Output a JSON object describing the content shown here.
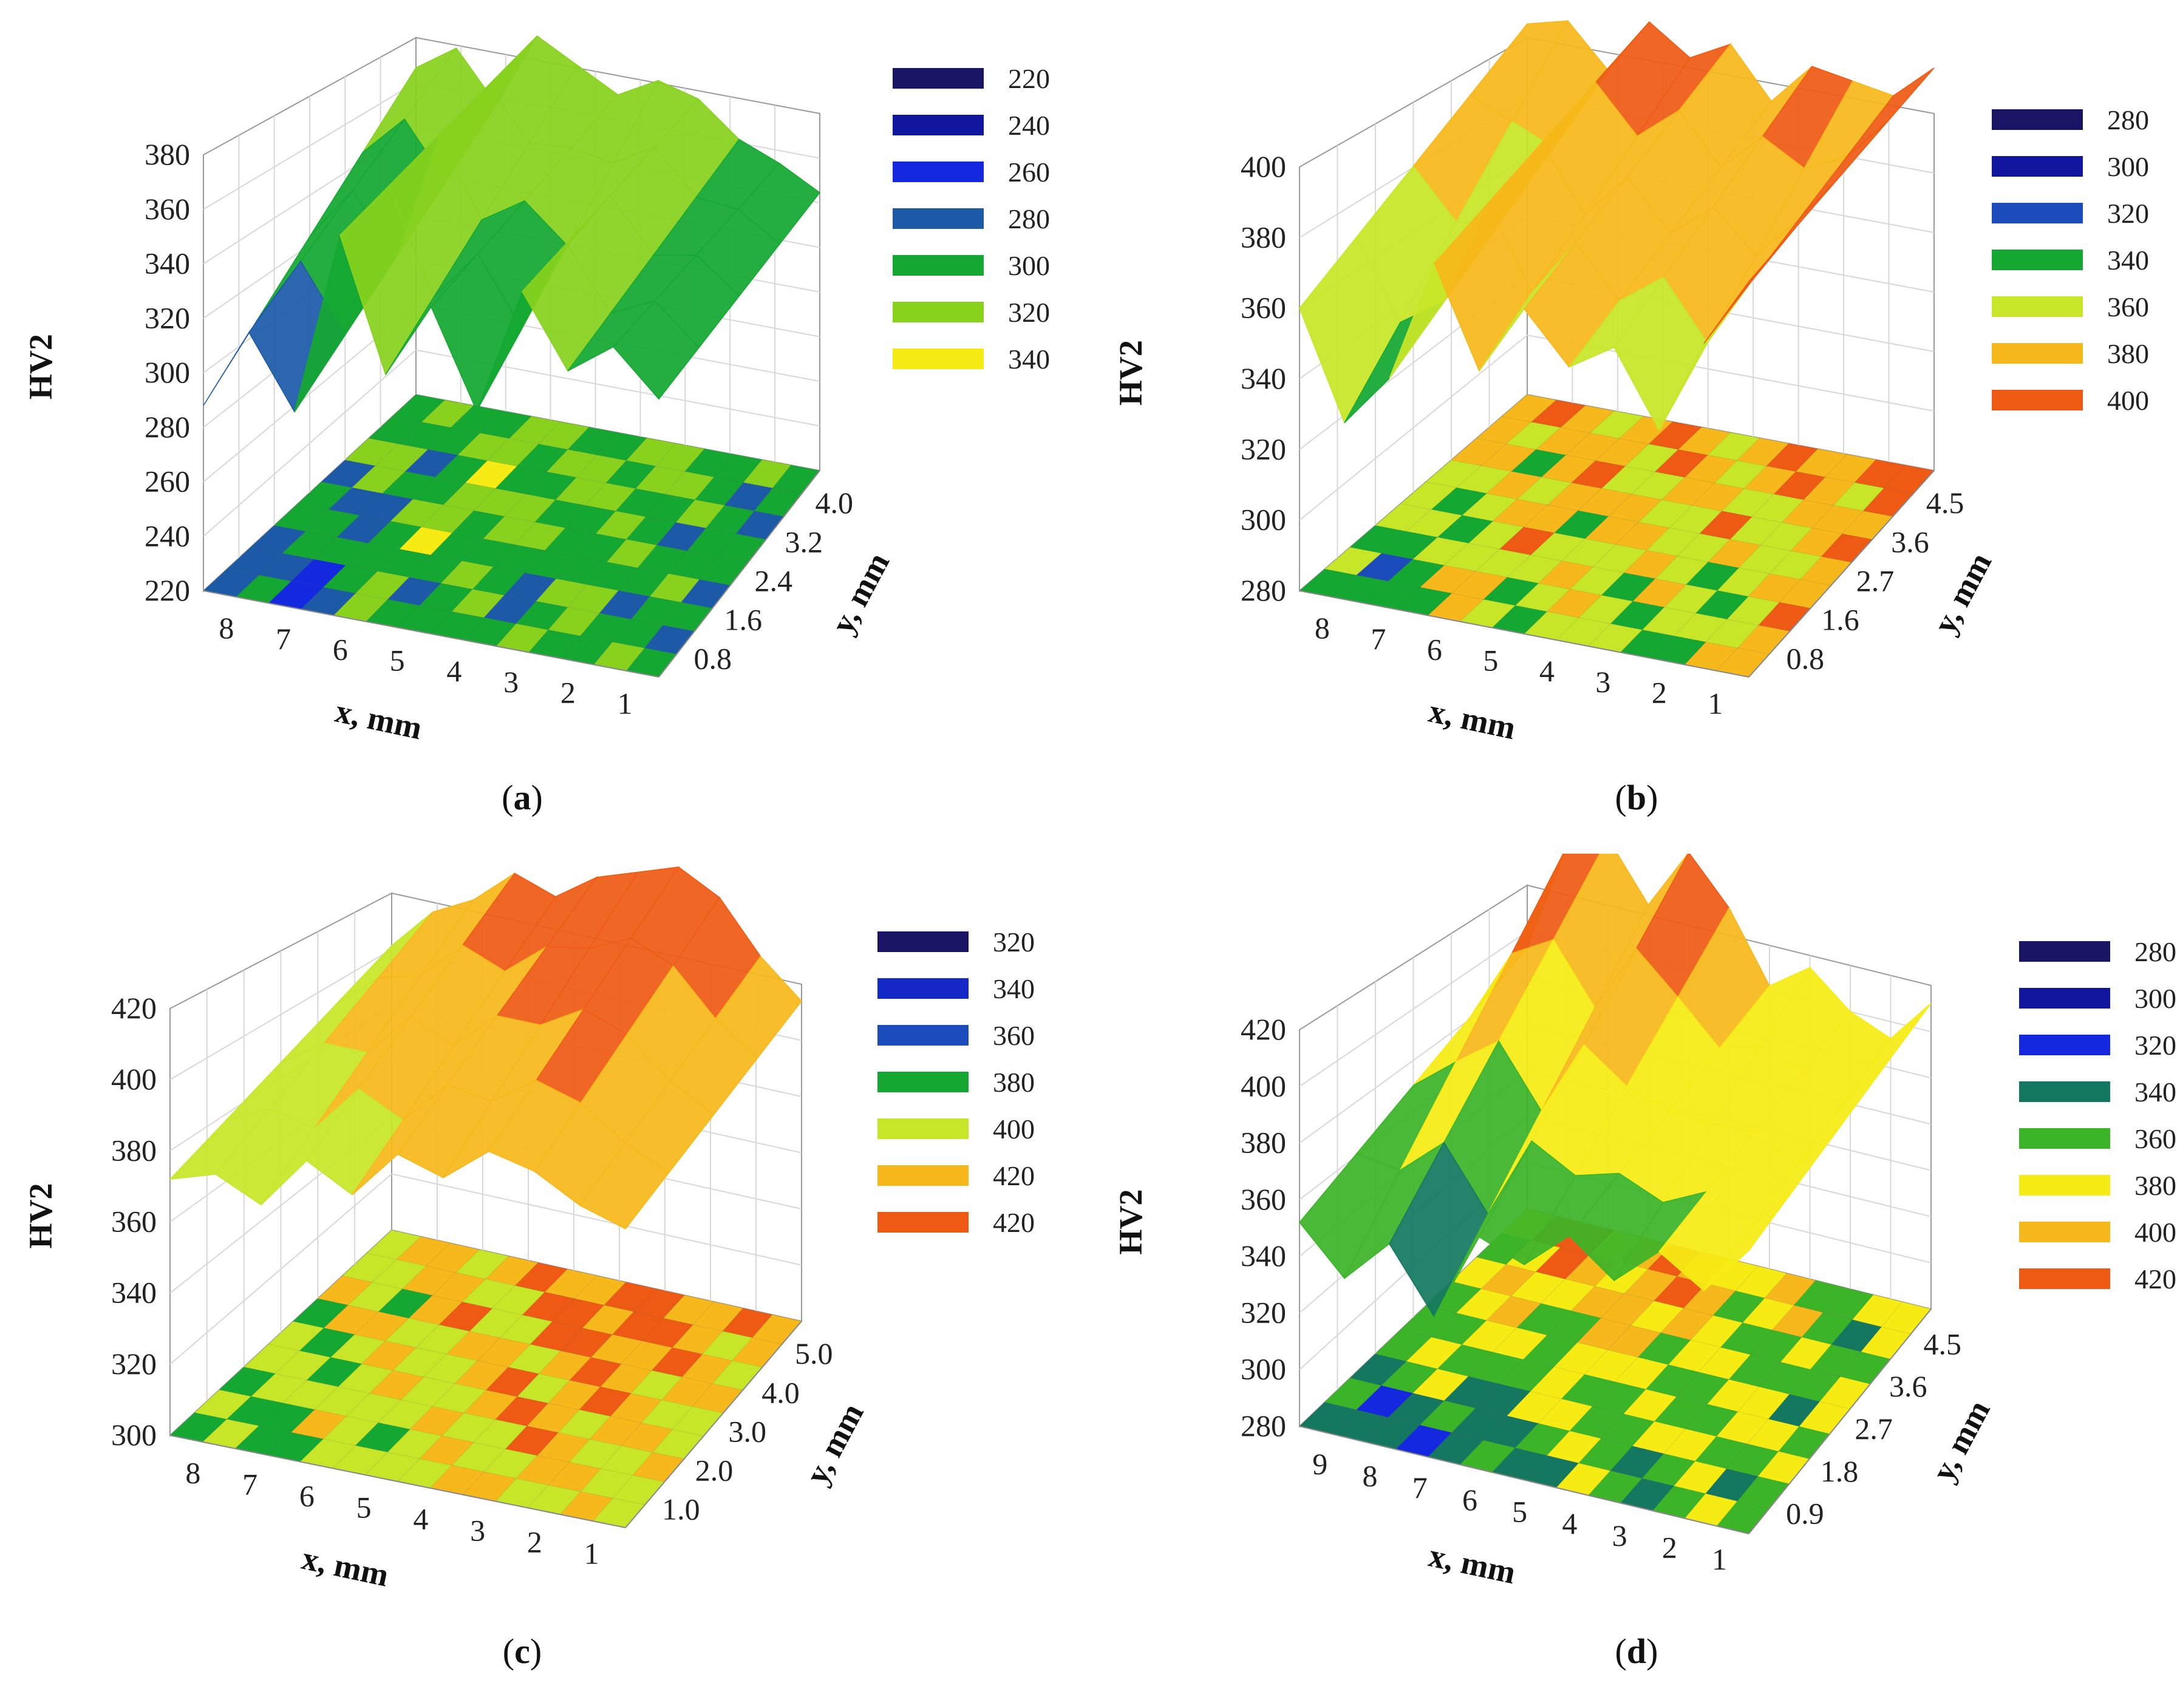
{
  "chart_data": [
    {
      "type": "surface3d",
      "panel": "a",
      "caption_letter": "a",
      "zlabel": "HV2",
      "xlabel": "x, mm",
      "ylabel": "y, mm",
      "zlim": [
        220,
        380
      ],
      "z_ticks": [
        "220",
        "240",
        "260",
        "280",
        "300",
        "320",
        "340",
        "360",
        "380"
      ],
      "x_ticks": [
        "8",
        "7",
        "6",
        "5",
        "4",
        "3",
        "2",
        "1"
      ],
      "y_ticks": [
        "0.8",
        "1.6",
        "2.4",
        "3.2",
        "4.0"
      ],
      "legend": [
        {
          "label": "220",
          "color": "#1a1464"
        },
        {
          "label": "240",
          "color": "#10169e"
        },
        {
          "label": "260",
          "color": "#1428e0"
        },
        {
          "label": "280",
          "color": "#1c5aa8"
        },
        {
          "label": "300",
          "color": "#14a832"
        },
        {
          "label": "320",
          "color": "#88d21e"
        },
        {
          "label": "340",
          "color": "#f6ec14"
        }
      ],
      "surface_front_profile": [
        288,
        318,
        292,
        360,
        312,
        340,
        305,
        352,
        326,
        338,
        322
      ],
      "surface_back_profile": [
        340,
        350,
        332,
        360,
        352,
        344,
        352,
        348,
        336,
        330,
        322
      ]
    },
    {
      "type": "surface3d",
      "panel": "b",
      "caption_letter": "b",
      "zlabel": "HV2",
      "xlabel": "x, mm",
      "ylabel": "y, mm",
      "zlim": [
        280,
        400
      ],
      "z_ticks": [
        "280",
        "300",
        "320",
        "340",
        "360",
        "380",
        "400"
      ],
      "x_ticks": [
        "8",
        "7",
        "6",
        "5",
        "4",
        "3",
        "2",
        "1"
      ],
      "y_ticks": [
        "0.8",
        "1.6",
        "2.7",
        "3.6",
        "4.5"
      ],
      "legend": [
        {
          "label": "280",
          "color": "#1a1464"
        },
        {
          "label": "300",
          "color": "#10169e"
        },
        {
          "label": "320",
          "color": "#1c4cbc"
        },
        {
          "label": "340",
          "color": "#14a832"
        },
        {
          "label": "360",
          "color": "#c8e628"
        },
        {
          "label": "380",
          "color": "#f6b81a"
        },
        {
          "label": "400",
          "color": "#ee5a14"
        }
      ],
      "surface_front_profile": [
        360,
        330,
        345,
        380,
        352,
        372,
        358,
        366,
        345,
        372,
        392
      ],
      "surface_back_profile": [
        385,
        388,
        376,
        392,
        384,
        390,
        376,
        388,
        386,
        384,
        394
      ]
    },
    {
      "type": "surface3d",
      "panel": "c",
      "caption_letter": "c",
      "zlabel": "HV2",
      "xlabel": "x, mm",
      "ylabel": "y, mm",
      "zlim": [
        300,
        420
      ],
      "z_ticks": [
        "300",
        "320",
        "340",
        "360",
        "380",
        "400",
        "420"
      ],
      "x_ticks": [
        "8",
        "7",
        "6",
        "5",
        "4",
        "3",
        "2",
        "1"
      ],
      "y_ticks": [
        "1.0",
        "2.0",
        "3.0",
        "4.0",
        "5.0"
      ],
      "legend": [
        {
          "label": "320",
          "color": "#1a1464"
        },
        {
          "label": "340",
          "color": "#1428c8"
        },
        {
          "label": "360",
          "color": "#1c4cbc"
        },
        {
          "label": "380",
          "color": "#14a832"
        },
        {
          "label": "400",
          "color": "#c8e628"
        },
        {
          "label": "420",
          "color": "#f6b81a"
        },
        {
          "label": "420",
          "color": "#ee5a14"
        }
      ],
      "surface_front_profile": [
        372,
        376,
        370,
        385,
        378,
        392,
        388,
        398,
        395,
        388,
        384
      ],
      "surface_back_profile": [
        380,
        392,
        398,
        408,
        404,
        412,
        416,
        420,
        414,
        400,
        390
      ]
    },
    {
      "type": "surface3d",
      "panel": "d",
      "caption_letter": "d",
      "zlabel": "HV2",
      "xlabel": "x, mm",
      "ylabel": "y, mm",
      "zlim": [
        280,
        420
      ],
      "z_ticks": [
        "280",
        "300",
        "320",
        "340",
        "360",
        "380",
        "400",
        "420"
      ],
      "x_ticks": [
        "9",
        "8",
        "7",
        "6",
        "5",
        "4",
        "3",
        "2",
        "1"
      ],
      "y_ticks": [
        "0.9",
        "1.8",
        "2.7",
        "3.6",
        "4.5"
      ],
      "legend": [
        {
          "label": "280",
          "color": "#1a1464"
        },
        {
          "label": "300",
          "color": "#10169e"
        },
        {
          "label": "320",
          "color": "#1428e0"
        },
        {
          "label": "340",
          "color": "#147860"
        },
        {
          "label": "360",
          "color": "#3cb428"
        },
        {
          "label": "380",
          "color": "#f6ec14"
        },
        {
          "label": "400",
          "color": "#f6b81a"
        },
        {
          "label": "420",
          "color": "#ee5a14"
        }
      ],
      "surface_front_profile": [
        352,
        336,
        352,
        330,
        362,
        356,
        370,
        358,
        372,
        362,
        380
      ],
      "surface_back_profile": [
        372,
        412,
        418,
        398,
        420,
        404,
        380,
        390,
        378,
        372,
        388
      ]
    }
  ]
}
